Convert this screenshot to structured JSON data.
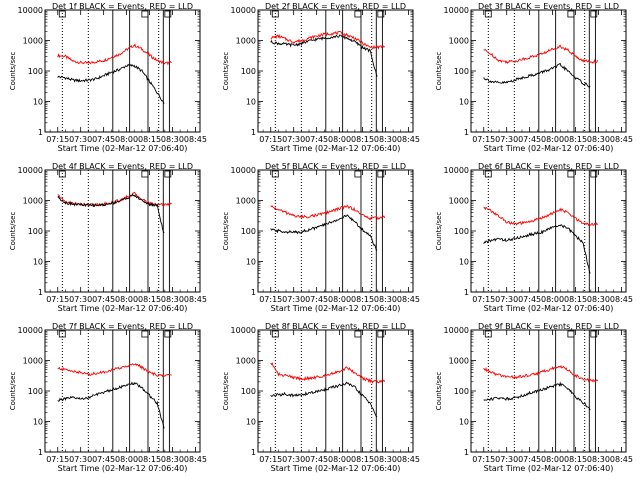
{
  "x_tick_labels": [
    "07:15",
    "07:30",
    "07:45",
    "08:00",
    "08:15",
    "08:30",
    "08:45"
  ],
  "y_tick_labels": [
    "1",
    "10",
    "100",
    "1000",
    "10000"
  ],
  "ylabel": "Counts/sec",
  "xlabel": "Start Time (02-Mar-12 07:06:40)",
  "colors": {
    "events": "#000000",
    "lld": "#ff0000"
  },
  "chart_data": [
    {
      "type": "line",
      "title": "Det 1f BLACK = Events, RED = LLD",
      "xlabel": "Start Time (02-Mar-12 07:06:40)",
      "ylabel": "Counts/sec",
      "x_unit": "minutes after 07:00",
      "xlim": [
        "07:06:40",
        "08:48"
      ],
      "ylim": [
        1,
        10000
      ],
      "yscale": "log",
      "x_ticks": [
        "07:15",
        "07:30",
        "07:45",
        "08:00",
        "08:15",
        "08:30",
        "08:45"
      ],
      "y_ticks": [
        1,
        10,
        100,
        1000,
        10000
      ],
      "x": [
        15,
        20,
        25,
        30,
        35,
        40,
        45,
        50,
        55,
        60,
        65,
        70,
        75,
        80,
        85,
        90
      ],
      "series": [
        {
          "color": "red",
          "values": [
            320,
            300,
            210,
            190,
            180,
            200,
            220,
            280,
            350,
            500,
            700,
            520,
            330,
            220,
            180,
            190
          ]
        },
        {
          "color": "black",
          "values": [
            65,
            60,
            50,
            48,
            50,
            55,
            70,
            90,
            110,
            150,
            150,
            100,
            45,
            20,
            8,
            null
          ]
        }
      ],
      "markers": [
        "07:18",
        "07:35",
        "07:51",
        "08:02",
        "08:14",
        "08:21",
        "08:24",
        "08:28"
      ],
      "flags": [
        "07:16",
        "08:10",
        "08:25"
      ]
    },
    {
      "type": "line",
      "title": "Det 2f BLACK = Events, RED = LLD",
      "xlabel": "Start Time (02-Mar-12 07:06:40)",
      "ylabel": "Counts/sec",
      "x_unit": "minutes after 07:00",
      "xlim": [
        "07:06:40",
        "08:48"
      ],
      "ylim": [
        1,
        10000
      ],
      "yscale": "log",
      "x_ticks": [
        "07:15",
        "07:30",
        "07:45",
        "08:00",
        "08:15",
        "08:30",
        "08:45"
      ],
      "y_ticks": [
        1,
        10,
        100,
        1000,
        10000
      ],
      "x": [
        15,
        20,
        25,
        30,
        35,
        40,
        45,
        50,
        55,
        60,
        65,
        70,
        75,
        80,
        85,
        90
      ],
      "series": [
        {
          "color": "red",
          "values": [
            1200,
            1400,
            1100,
            900,
            1000,
            1200,
            1400,
            1600,
            1700,
            1800,
            1500,
            1200,
            800,
            600,
            600,
            650
          ]
        },
        {
          "color": "black",
          "values": [
            900,
            800,
            750,
            700,
            800,
            950,
            1100,
            1200,
            1300,
            1400,
            1200,
            900,
            600,
            450,
            50,
            null
          ]
        }
      ],
      "markers": [
        "07:18",
        "07:35",
        "07:51",
        "08:02",
        "08:14",
        "08:21",
        "08:24",
        "08:28"
      ],
      "flags": [
        "07:16",
        "08:10",
        "08:25"
      ]
    },
    {
      "type": "line",
      "title": "Det 3f BLACK = Events, RED = LLD",
      "xlabel": "Start Time (02-Mar-12 07:06:40)",
      "ylabel": "Counts/sec",
      "x_unit": "minutes after 07:00",
      "xlim": [
        "07:06:40",
        "08:48"
      ],
      "ylim": [
        1,
        10000
      ],
      "yscale": "log",
      "x_ticks": [
        "07:15",
        "07:30",
        "07:45",
        "08:00",
        "08:15",
        "08:30",
        "08:45"
      ],
      "y_ticks": [
        1,
        10,
        100,
        1000,
        10000
      ],
      "x": [
        15,
        20,
        25,
        30,
        35,
        40,
        45,
        50,
        55,
        60,
        65,
        70,
        75,
        80,
        85,
        90
      ],
      "series": [
        {
          "color": "red",
          "values": [
            500,
            350,
            220,
            200,
            210,
            240,
            280,
            330,
            400,
            520,
            650,
            480,
            300,
            220,
            200,
            210
          ]
        },
        {
          "color": "black",
          "values": [
            60,
            45,
            40,
            42,
            50,
            60,
            70,
            80,
            100,
            120,
            160,
            100,
            60,
            40,
            30,
            null
          ]
        }
      ],
      "markers": [
        "07:18",
        "07:35",
        "07:51",
        "08:02",
        "08:14",
        "08:21",
        "08:24",
        "08:28"
      ],
      "flags": [
        "07:16",
        "08:10",
        "08:25"
      ]
    },
    {
      "type": "line",
      "title": "Det 4f BLACK = Events, RED = LLD",
      "xlabel": "Start Time (02-Mar-12 07:06:40)",
      "ylabel": "Counts/sec",
      "x_unit": "minutes after 07:00",
      "xlim": [
        "07:06:40",
        "08:48"
      ],
      "ylim": [
        1,
        10000
      ],
      "yscale": "log",
      "x_ticks": [
        "07:15",
        "07:30",
        "07:45",
        "08:00",
        "08:15",
        "08:30",
        "08:45"
      ],
      "y_ticks": [
        1,
        10,
        100,
        1000,
        10000
      ],
      "x": [
        15,
        20,
        25,
        30,
        35,
        40,
        45,
        50,
        55,
        60,
        65,
        70,
        75,
        80,
        85,
        90
      ],
      "series": [
        {
          "color": "red",
          "values": [
            1500,
            900,
            800,
            750,
            720,
            720,
            750,
            850,
            1000,
            1300,
            1700,
            1100,
            800,
            750,
            750,
            760
          ]
        },
        {
          "color": "black",
          "values": [
            1300,
            850,
            780,
            720,
            700,
            700,
            720,
            800,
            950,
            1200,
            1500,
            1000,
            750,
            700,
            60,
            null
          ]
        }
      ],
      "markers": [
        "07:18",
        "07:35",
        "07:51",
        "08:02",
        "08:14",
        "08:21",
        "08:24",
        "08:28"
      ],
      "flags": [
        "07:16",
        "08:10",
        "08:25"
      ]
    },
    {
      "type": "line",
      "title": "Det 5f BLACK = Events, RED = LLD",
      "xlabel": "Start Time (02-Mar-12 07:06:40)",
      "ylabel": "Counts/sec",
      "x_unit": "minutes after 07:00",
      "xlim": [
        "07:06:40",
        "08:48"
      ],
      "ylim": [
        1,
        10000
      ],
      "yscale": "log",
      "x_ticks": [
        "07:15",
        "07:30",
        "07:45",
        "08:00",
        "08:15",
        "08:30",
        "08:45"
      ],
      "y_ticks": [
        1,
        10,
        100,
        1000,
        10000
      ],
      "x": [
        15,
        20,
        25,
        30,
        35,
        40,
        45,
        50,
        55,
        60,
        65,
        70,
        75,
        80,
        85,
        90
      ],
      "series": [
        {
          "color": "red",
          "values": [
            650,
            500,
            400,
            320,
            290,
            300,
            330,
            380,
            450,
            550,
            650,
            500,
            330,
            260,
            270,
            300
          ]
        },
        {
          "color": "black",
          "values": [
            110,
            100,
            95,
            90,
            95,
            110,
            130,
            160,
            200,
            250,
            320,
            200,
            110,
            70,
            20,
            null
          ]
        }
      ],
      "markers": [
        "07:18",
        "07:35",
        "07:51",
        "08:02",
        "08:14",
        "08:21",
        "08:24",
        "08:28"
      ],
      "flags": [
        "07:16",
        "08:10",
        "08:25"
      ]
    },
    {
      "type": "line",
      "title": "Det 6f BLACK = Events, RED = LLD",
      "xlabel": "Start Time (02-Mar-12 07:06:40)",
      "ylabel": "Counts/sec",
      "x_unit": "minutes after 07:00",
      "xlim": [
        "07:06:40",
        "08:48"
      ],
      "ylim": [
        1,
        10000
      ],
      "yscale": "log",
      "x_ticks": [
        "07:15",
        "07:30",
        "07:45",
        "08:00",
        "08:15",
        "08:30",
        "08:45"
      ],
      "y_ticks": [
        1,
        10,
        100,
        1000,
        10000
      ],
      "x": [
        15,
        20,
        25,
        30,
        35,
        40,
        45,
        50,
        55,
        60,
        65,
        70,
        75,
        80,
        85,
        90
      ],
      "series": [
        {
          "color": "red",
          "values": [
            600,
            450,
            300,
            200,
            170,
            180,
            200,
            240,
            300,
            380,
            500,
            400,
            250,
            180,
            160,
            170
          ]
        },
        {
          "color": "black",
          "values": [
            40,
            50,
            55,
            50,
            55,
            65,
            75,
            85,
            100,
            130,
            160,
            120,
            70,
            40,
            3,
            null
          ]
        }
      ],
      "markers": [
        "07:18",
        "07:35",
        "07:51",
        "08:02",
        "08:14",
        "08:21",
        "08:24",
        "08:28"
      ],
      "flags": [
        "07:16",
        "08:10",
        "08:25"
      ]
    },
    {
      "type": "line",
      "title": "Det 7f BLACK = Events, RED = LLD",
      "xlabel": "Start Time (02-Mar-12 07:06:40)",
      "ylabel": "Counts/sec",
      "x_unit": "minutes after 07:00",
      "xlim": [
        "07:06:40",
        "08:48"
      ],
      "ylim": [
        1,
        10000
      ],
      "yscale": "log",
      "x_ticks": [
        "07:15",
        "07:30",
        "07:45",
        "08:00",
        "08:15",
        "08:30",
        "08:45"
      ],
      "y_ticks": [
        1,
        10,
        100,
        1000,
        10000
      ],
      "x": [
        15,
        20,
        25,
        30,
        35,
        40,
        45,
        50,
        55,
        60,
        65,
        70,
        75,
        80,
        85,
        90
      ],
      "series": [
        {
          "color": "red",
          "values": [
            550,
            500,
            450,
            400,
            350,
            380,
            420,
            480,
            560,
            650,
            800,
            600,
            400,
            330,
            320,
            330
          ]
        },
        {
          "color": "black",
          "values": [
            50,
            55,
            60,
            55,
            60,
            75,
            90,
            110,
            130,
            150,
            180,
            130,
            70,
            40,
            5,
            null
          ]
        }
      ],
      "markers": [
        "07:18",
        "07:35",
        "07:51",
        "08:02",
        "08:14",
        "08:21",
        "08:24",
        "08:28"
      ],
      "flags": [
        "07:16",
        "08:10",
        "08:25"
      ]
    },
    {
      "type": "line",
      "title": "Det 8f BLACK = Events, RED = LLD",
      "xlabel": "Start Time (02-Mar-12 07:06:40)",
      "ylabel": "Counts/sec",
      "x_unit": "minutes after 07:00",
      "xlim": [
        "07:06:40",
        "08:48"
      ],
      "ylim": [
        1,
        10000
      ],
      "yscale": "log",
      "x_ticks": [
        "07:15",
        "07:30",
        "07:45",
        "08:00",
        "08:15",
        "08:30",
        "08:45"
      ],
      "y_ticks": [
        1,
        10,
        100,
        1000,
        10000
      ],
      "x": [
        15,
        20,
        25,
        30,
        35,
        40,
        45,
        50,
        55,
        60,
        65,
        70,
        75,
        80,
        85,
        90
      ],
      "series": [
        {
          "color": "red",
          "values": [
            900,
            350,
            320,
            280,
            250,
            260,
            280,
            320,
            380,
            450,
            580,
            400,
            260,
            210,
            200,
            210
          ]
        },
        {
          "color": "black",
          "values": [
            70,
            75,
            80,
            70,
            75,
            85,
            95,
            110,
            130,
            150,
            180,
            130,
            70,
            40,
            12,
            null
          ]
        }
      ],
      "markers": [
        "07:18",
        "07:35",
        "07:51",
        "08:02",
        "08:14",
        "08:21",
        "08:24",
        "08:28"
      ],
      "flags": [
        "07:16",
        "08:10",
        "08:25"
      ]
    },
    {
      "type": "line",
      "title": "Det 9f BLACK = Events, RED = LLD",
      "xlabel": "Start Time (02-Mar-12 07:06:40)",
      "ylabel": "Counts/sec",
      "x_unit": "minutes after 07:00",
      "xlim": [
        "07:06:40",
        "08:48"
      ],
      "ylim": [
        1,
        10000
      ],
      "yscale": "log",
      "x_ticks": [
        "07:15",
        "07:30",
        "07:45",
        "08:00",
        "08:15",
        "08:30",
        "08:45"
      ],
      "y_ticks": [
        1,
        10,
        100,
        1000,
        10000
      ],
      "x": [
        15,
        20,
        25,
        30,
        35,
        40,
        45,
        50,
        55,
        60,
        65,
        70,
        75,
        80,
        85,
        90
      ],
      "series": [
        {
          "color": "red",
          "values": [
            550,
            400,
            330,
            300,
            280,
            300,
            330,
            380,
            450,
            550,
            650,
            480,
            320,
            250,
            220,
            230
          ]
        },
        {
          "color": "black",
          "values": [
            50,
            55,
            60,
            55,
            60,
            70,
            85,
            100,
            120,
            140,
            170,
            120,
            65,
            40,
            25,
            null
          ]
        }
      ],
      "markers": [
        "07:18",
        "07:35",
        "07:51",
        "08:02",
        "08:14",
        "08:21",
        "08:24",
        "08:28"
      ],
      "flags": [
        "07:16",
        "08:10",
        "08:25"
      ]
    }
  ]
}
